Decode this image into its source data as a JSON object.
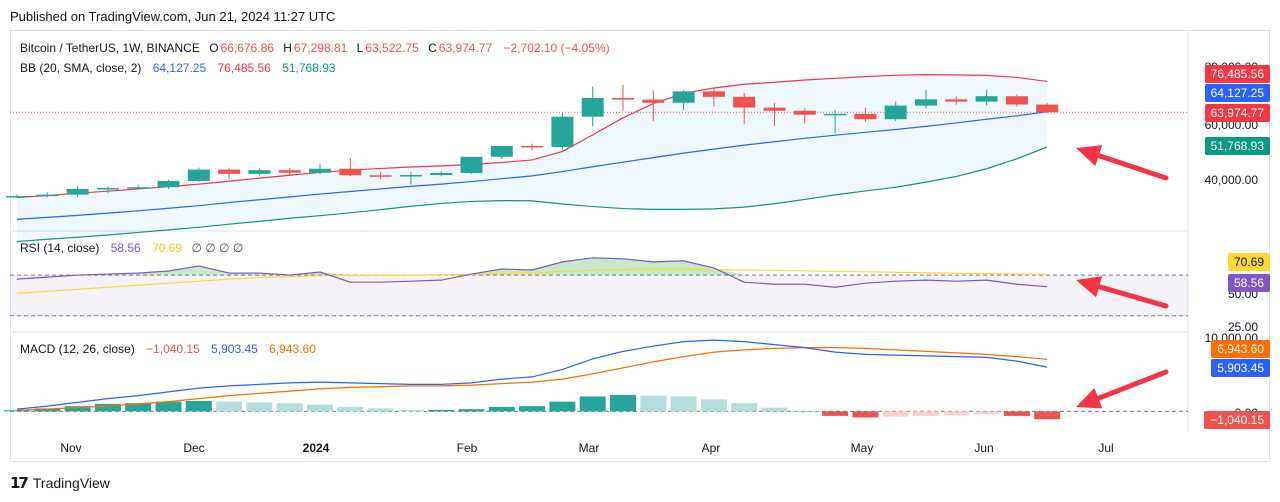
{
  "header": {
    "published": "Published on TradingView.com, Jun 21, 2024 11:27 UTC"
  },
  "footer": {
    "brand": "TradingView"
  },
  "main_legend": {
    "symbol": "Bitcoin / TetherUS, 1W, BINANCE",
    "o_label": "O",
    "o": "66,676.86",
    "h_label": "H",
    "h": "67,298.81",
    "l_label": "L",
    "l": "63,522.75",
    "c_label": "C",
    "c": "63,974.77",
    "change": "−2,702.10 (−4.05%)"
  },
  "bb_legend": {
    "name": "BB (20, SMA, close, 2)",
    "basis": "64,127.25",
    "upper": "76,485.56",
    "lower": "51,768.93"
  },
  "rsi_legend": {
    "name": "RSI (14, close)",
    "rsi": "58.56",
    "ma": "70.69",
    "extra": "∅ ∅ ∅ ∅"
  },
  "macd_legend": {
    "name": "MACD (12, 26, close)",
    "hist": "−1,040.15",
    "macd": "5,903.45",
    "signal": "6,943.60"
  },
  "price_tags": {
    "upper": "76,485.56",
    "basis": "64,127.25",
    "close": "63,974.77",
    "lower": "51,768.93"
  },
  "rsi_tags": {
    "ma": "70.69",
    "rsi": "58.56"
  },
  "macd_tags": {
    "signal": "6,943.60",
    "macd": "5,903.45",
    "hist": "−1,040.15"
  },
  "axis_labels": {
    "p_top": "80,000.00",
    "p_mid": "60,000.00",
    "p_low": "40,000.00",
    "r_50": "50.00",
    "r_25": "25.00",
    "m_top": "10,000.00",
    "m_zero": "0.00"
  },
  "colors": {
    "up": "#26a69a",
    "down": "#ef5350",
    "bb_upper": "#f23645",
    "bb_basis": "#2962ff",
    "bb_lower": "#089981",
    "rsi": "#7e57c2",
    "rsi_ma": "#fdd835",
    "macd": "#2962ff",
    "signal": "#ff6d00",
    "arrow": "#f23645"
  },
  "chart_data": [
    {
      "type": "candlestick",
      "title": "Bitcoin / TetherUS, 1W, BINANCE",
      "x_ticks": [
        "Nov",
        "Dec",
        "2024",
        "Feb",
        "Mar",
        "Apr",
        "May",
        "Jun",
        "Jul"
      ],
      "y_ticks": [
        40000,
        60000,
        80000
      ],
      "candles": [
        {
          "o": 34000,
          "h": 35000,
          "l": 33800,
          "c": 34500
        },
        {
          "o": 34500,
          "h": 35800,
          "l": 34000,
          "c": 35000
        },
        {
          "o": 35000,
          "h": 37900,
          "l": 34200,
          "c": 37000
        },
        {
          "o": 37000,
          "h": 37900,
          "l": 35600,
          "c": 37300
        },
        {
          "o": 37300,
          "h": 38500,
          "l": 36800,
          "c": 37600
        },
        {
          "o": 37600,
          "h": 40200,
          "l": 37000,
          "c": 39800
        },
        {
          "o": 39800,
          "h": 44500,
          "l": 39500,
          "c": 43800
        },
        {
          "o": 43800,
          "h": 44300,
          "l": 40500,
          "c": 42300
        },
        {
          "o": 42300,
          "h": 44200,
          "l": 41700,
          "c": 43600
        },
        {
          "o": 43600,
          "h": 44300,
          "l": 41800,
          "c": 42700
        },
        {
          "o": 42700,
          "h": 45900,
          "l": 42200,
          "c": 44100
        },
        {
          "o": 44100,
          "h": 47900,
          "l": 41500,
          "c": 41800
        },
        {
          "o": 41800,
          "h": 43000,
          "l": 40500,
          "c": 41700
        },
        {
          "o": 41700,
          "h": 43000,
          "l": 38600,
          "c": 41900
        },
        {
          "o": 41900,
          "h": 43200,
          "l": 41400,
          "c": 42600
        },
        {
          "o": 42600,
          "h": 48200,
          "l": 42400,
          "c": 48300
        },
        {
          "o": 48300,
          "h": 52000,
          "l": 47500,
          "c": 52100
        },
        {
          "o": 52100,
          "h": 52900,
          "l": 50600,
          "c": 51700
        },
        {
          "o": 51700,
          "h": 63900,
          "l": 50800,
          "c": 62400
        },
        {
          "o": 62400,
          "h": 73000,
          "l": 59000,
          "c": 69000
        },
        {
          "o": 69000,
          "h": 73600,
          "l": 64500,
          "c": 68400
        },
        {
          "o": 68400,
          "h": 71700,
          "l": 60800,
          "c": 67300
        },
        {
          "o": 67300,
          "h": 71800,
          "l": 64700,
          "c": 71300
        },
        {
          "o": 71300,
          "h": 72400,
          "l": 66000,
          "c": 69400
        },
        {
          "o": 69400,
          "h": 70700,
          "l": 59800,
          "c": 65600
        },
        {
          "o": 65600,
          "h": 67200,
          "l": 59200,
          "c": 64500
        },
        {
          "o": 64500,
          "h": 65300,
          "l": 60000,
          "c": 63100
        },
        {
          "o": 63100,
          "h": 64700,
          "l": 56500,
          "c": 63400
        },
        {
          "o": 63400,
          "h": 65500,
          "l": 60600,
          "c": 61500
        },
        {
          "o": 61500,
          "h": 67700,
          "l": 60900,
          "c": 66300
        },
        {
          "o": 66300,
          "h": 71900,
          "l": 65200,
          "c": 68500
        },
        {
          "o": 68500,
          "h": 69500,
          "l": 66600,
          "c": 67700
        },
        {
          "o": 67700,
          "h": 71900,
          "l": 66300,
          "c": 69600
        },
        {
          "o": 69600,
          "h": 70200,
          "l": 66000,
          "c": 66700
        },
        {
          "o": 66676.86,
          "h": 67298.81,
          "l": 63522.75,
          "c": 63974.77
        }
      ],
      "bollinger": {
        "upper": [
          34000,
          34700,
          35500,
          36200,
          37000,
          37800,
          38700,
          39700,
          40800,
          41800,
          42800,
          43600,
          44200,
          44700,
          45100,
          45600,
          46300,
          47200,
          50200,
          56000,
          62000,
          67000,
          70600,
          72500,
          73800,
          74500,
          75300,
          75900,
          76500,
          77000,
          77200,
          77100,
          76900,
          76200,
          74800
        ],
        "basis": [
          26300,
          27000,
          27700,
          28500,
          29300,
          30200,
          31100,
          32200,
          33200,
          34200,
          35200,
          36100,
          37000,
          37900,
          38700,
          39600,
          40600,
          41600,
          43100,
          44800,
          46400,
          48000,
          49600,
          51000,
          52400,
          53600,
          54800,
          55900,
          56900,
          57900,
          59000,
          60200,
          61500,
          62700,
          64127.25
        ],
        "lower": [
          18500,
          19300,
          20000,
          20800,
          21700,
          22600,
          23500,
          24600,
          25600,
          26700,
          27600,
          28600,
          29700,
          30900,
          31900,
          32600,
          32900,
          32800,
          31700,
          30800,
          30100,
          29800,
          29800,
          30000,
          30600,
          31800,
          33300,
          34900,
          36300,
          37600,
          39400,
          41400,
          44100,
          47600,
          51768.93
        ]
      },
      "labels": {
        "basis_value": 64127.25,
        "upper_value": 76485.56,
        "lower_value": 51768.93,
        "close_value": 63974.77
      }
    },
    {
      "type": "line",
      "title": "RSI (14, close)",
      "y_ticks": [
        25,
        50
      ],
      "ylim": [
        18,
        92
      ],
      "bands": {
        "upper": 70,
        "lower": 30
      },
      "series": [
        {
          "name": "RSI",
          "values": [
            66,
            68,
            70,
            71,
            72,
            74,
            79,
            72,
            72,
            70,
            73,
            63,
            63,
            64,
            65,
            71,
            76,
            75,
            83,
            87,
            86,
            83,
            84,
            77,
            63,
            61,
            61,
            58,
            62,
            64,
            65,
            64,
            65,
            61,
            58.56
          ]
        },
        {
          "name": "RSI MA",
          "values": [
            52,
            54,
            56,
            58,
            60,
            62,
            64,
            66,
            67.5,
            68.5,
            69.3,
            69.6,
            69.8,
            70,
            70.3,
            70.6,
            71.5,
            72.3,
            73.5,
            74.8,
            75.5,
            75.8,
            75.8,
            75.4,
            75,
            74.6,
            74.2,
            73.6,
            73.2,
            72.8,
            72.3,
            71.8,
            71.4,
            71,
            70.69
          ]
        }
      ]
    },
    {
      "type": "line",
      "title": "MACD (12, 26, close)",
      "y_ticks": [
        0,
        10000
      ],
      "ylim": [
        -2500,
        10500
      ],
      "series": [
        {
          "name": "MACD",
          "values": [
            300,
            700,
            1200,
            1700,
            2100,
            2600,
            3100,
            3400,
            3600,
            3800,
            3900,
            3800,
            3700,
            3600,
            3600,
            3800,
            4300,
            4600,
            5600,
            7000,
            8000,
            8700,
            9300,
            9500,
            9300,
            8900,
            8500,
            7900,
            7600,
            7500,
            7400,
            7300,
            7200,
            6700,
            5903.45
          ]
        },
        {
          "name": "Signal",
          "values": [
            150,
            300,
            500,
            700,
            1000,
            1300,
            1700,
            2100,
            2400,
            2700,
            3000,
            3200,
            3300,
            3400,
            3400,
            3500,
            3700,
            3900,
            4300,
            5000,
            5800,
            6600,
            7300,
            7900,
            8200,
            8400,
            8500,
            8500,
            8400,
            8200,
            8000,
            7800,
            7600,
            7300,
            6943.6
          ]
        },
        {
          "name": "Histogram",
          "values": [
            150,
            400,
            700,
            1000,
            1100,
            1300,
            1400,
            1300,
            1200,
            1100,
            900,
            600,
            400,
            200,
            200,
            300,
            600,
            700,
            1300,
            2000,
            2200,
            2100,
            2000,
            1600,
            1100,
            500,
            0,
            -600,
            -800,
            -700,
            -600,
            -500,
            -400,
            -600,
            -1040.15
          ]
        }
      ]
    }
  ]
}
